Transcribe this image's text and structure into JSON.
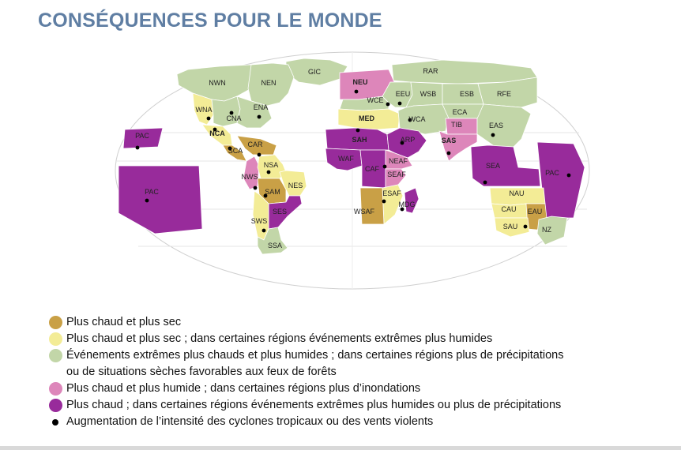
{
  "title": "CONSÉQUENCES POUR LE MONDE",
  "colors": {
    "hot_dry": "#c9a046",
    "hot_dry_wet": "#f3ec96",
    "extremes": "#c2d6a8",
    "hot_wet": "#dd86ba",
    "hot": "#982b9b",
    "outline": "#cfcfcf"
  },
  "regions": [
    {
      "code": "GIC",
      "category": "extremes"
    },
    {
      "code": "NWN",
      "category": "extremes"
    },
    {
      "code": "NEN",
      "category": "extremes"
    },
    {
      "code": "WNA",
      "category": "hot_dry_wet"
    },
    {
      "code": "CNA",
      "category": "extremes"
    },
    {
      "code": "ENA",
      "category": "extremes"
    },
    {
      "code": "NCA",
      "category": "hot_dry_wet"
    },
    {
      "code": "SCA",
      "category": "hot_dry"
    },
    {
      "code": "CAR",
      "category": "hot_dry"
    },
    {
      "code": "NWS",
      "category": "hot_wet"
    },
    {
      "code": "NSA",
      "category": "hot_dry_wet"
    },
    {
      "code": "NES",
      "category": "hot_dry_wet"
    },
    {
      "code": "SAM",
      "category": "hot_dry"
    },
    {
      "code": "SES",
      "category": "hot"
    },
    {
      "code": "SWS",
      "category": "hot_dry_wet"
    },
    {
      "code": "SSA",
      "category": "extremes"
    },
    {
      "code": "PAC",
      "category": "hot"
    },
    {
      "code": "NEU",
      "category": "hot_wet"
    },
    {
      "code": "WCE",
      "category": "extremes"
    },
    {
      "code": "MED",
      "category": "hot_dry_wet"
    },
    {
      "code": "RAR",
      "category": "extremes"
    },
    {
      "code": "EEU",
      "category": "extremes"
    },
    {
      "code": "WSB",
      "category": "extremes"
    },
    {
      "code": "ESB",
      "category": "extremes"
    },
    {
      "code": "RFE",
      "category": "extremes"
    },
    {
      "code": "WCA",
      "category": "extremes"
    },
    {
      "code": "ECA",
      "category": "extremes"
    },
    {
      "code": "TIB",
      "category": "hot_wet"
    },
    {
      "code": "EAS",
      "category": "extremes"
    },
    {
      "code": "SAS",
      "category": "hot_wet"
    },
    {
      "code": "SAH",
      "category": "hot"
    },
    {
      "code": "ARP",
      "category": "hot"
    },
    {
      "code": "WAF",
      "category": "hot"
    },
    {
      "code": "CAF",
      "category": "hot"
    },
    {
      "code": "NEAF",
      "category": "hot_wet"
    },
    {
      "code": "SEAF",
      "category": "hot_wet"
    },
    {
      "code": "ESAF",
      "category": "hot_dry_wet"
    },
    {
      "code": "WSAF",
      "category": "hot_dry"
    },
    {
      "code": "MDG",
      "category": "hot"
    },
    {
      "code": "SEA",
      "category": "hot"
    },
    {
      "code": "NAU",
      "category": "hot_dry_wet"
    },
    {
      "code": "CAU",
      "category": "hot_dry_wet"
    },
    {
      "code": "EAU",
      "category": "hot_dry"
    },
    {
      "code": "SAU",
      "category": "hot_dry_wet"
    },
    {
      "code": "NZ",
      "category": "extremes"
    }
  ],
  "cyclone_regions": [
    "WNA",
    "CNA",
    "ENA",
    "NCA",
    "SCA",
    "CAR",
    "NWS",
    "NSA",
    "SAM",
    "SWS",
    "PAC",
    "NEU",
    "MED",
    "WCE",
    "EEU",
    "WCA",
    "ARP",
    "NEAF",
    "ESAF",
    "MDG",
    "SAS",
    "EAS",
    "SEA",
    "SAU"
  ],
  "legend": [
    {
      "swatch": "hot_dry",
      "text": "Plus chaud et plus sec"
    },
    {
      "swatch": "hot_dry_wet",
      "text": "Plus chaud et plus sec ; dans certaines régions événements extrêmes plus humides"
    },
    {
      "swatch": "extremes",
      "text": "Événements extrêmes plus chauds et plus humides ; dans certaines régions plus de précipitations"
    },
    {
      "swatch": "none",
      "text": "ou de situations sèches favorables aux feux de forêts"
    },
    {
      "swatch": "hot_wet",
      "text": "Plus chaud et plus humide ; dans certaines régions plus d’inondations"
    },
    {
      "swatch": "hot",
      "text": "Plus chaud ; dans certaines régions événements extrêmes plus humides ou plus de précipitations"
    },
    {
      "swatch": "dot",
      "text": "Augmentation de l’intensité des cyclones tropicaux ou des vents violents"
    }
  ]
}
